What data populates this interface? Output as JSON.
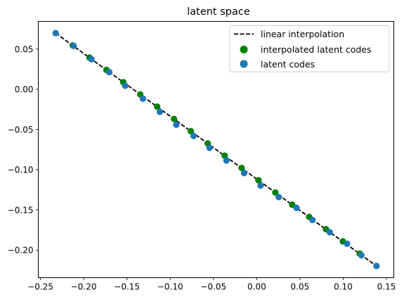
{
  "chart_data": {
    "type": "scatter",
    "title": "latent space",
    "xlabel": "",
    "ylabel": "",
    "xlim": [
      -0.2525,
      0.1585
    ],
    "ylim": [
      -0.2343,
      0.0844
    ],
    "xticks": [
      -0.25,
      -0.2,
      -0.15,
      -0.1,
      -0.05,
      0.0,
      0.05,
      0.1,
      0.15
    ],
    "xtick_labels": [
      "−0.25",
      "−0.20",
      "−0.15",
      "−0.10",
      "−0.05",
      "0.00",
      "0.05",
      "0.10",
      "0.15"
    ],
    "yticks": [
      0.05,
      0.0,
      -0.05,
      -0.1,
      -0.15,
      -0.2
    ],
    "ytick_labels": [
      "0.05",
      "0.00",
      "−0.05",
      "−0.10",
      "−0.15",
      "−0.20"
    ],
    "grid": false,
    "legend_position": "top-right",
    "line": {
      "name": "linear interpolation",
      "color": "#000000",
      "style": "dashed",
      "x": [
        -0.2325,
        0.1385
      ],
      "y": [
        0.0699,
        -0.2198
      ]
    },
    "series": [
      {
        "name": "interpolated latent codes",
        "color": "#008000",
        "x": [
          -0.2127,
          -0.1932,
          -0.1737,
          -0.1542,
          -0.1346,
          -0.1151,
          -0.0956,
          -0.0761,
          -0.0566,
          -0.037,
          -0.0175,
          0.002,
          0.0215,
          0.041,
          0.0606,
          0.0801,
          0.0996,
          0.1191
        ],
        "y": [
          0.0545,
          0.0393,
          0.0241,
          0.0088,
          -0.0064,
          -0.0216,
          -0.0369,
          -0.0521,
          -0.0673,
          -0.0826,
          -0.0978,
          -0.113,
          -0.1283,
          -0.1435,
          -0.1587,
          -0.174,
          -0.1892,
          -0.2044
        ]
      },
      {
        "name": "latent codes",
        "color": "#1f77b4",
        "x": [
          -0.2325,
          -0.2115,
          -0.191,
          -0.1705,
          -0.152,
          -0.1315,
          -0.112,
          -0.093,
          -0.073,
          -0.0545,
          -0.035,
          -0.0145,
          0.0045,
          0.0255,
          0.046,
          0.0645,
          0.0845,
          0.1045,
          0.121,
          0.1385
        ],
        "y": [
          0.0699,
          0.0539,
          0.0374,
          0.0213,
          0.0044,
          -0.0117,
          -0.0281,
          -0.044,
          -0.0579,
          -0.0728,
          -0.0885,
          -0.1042,
          -0.1198,
          -0.1341,
          -0.1474,
          -0.1626,
          -0.1779,
          -0.1922,
          -0.2064,
          -0.2198
        ]
      }
    ]
  }
}
